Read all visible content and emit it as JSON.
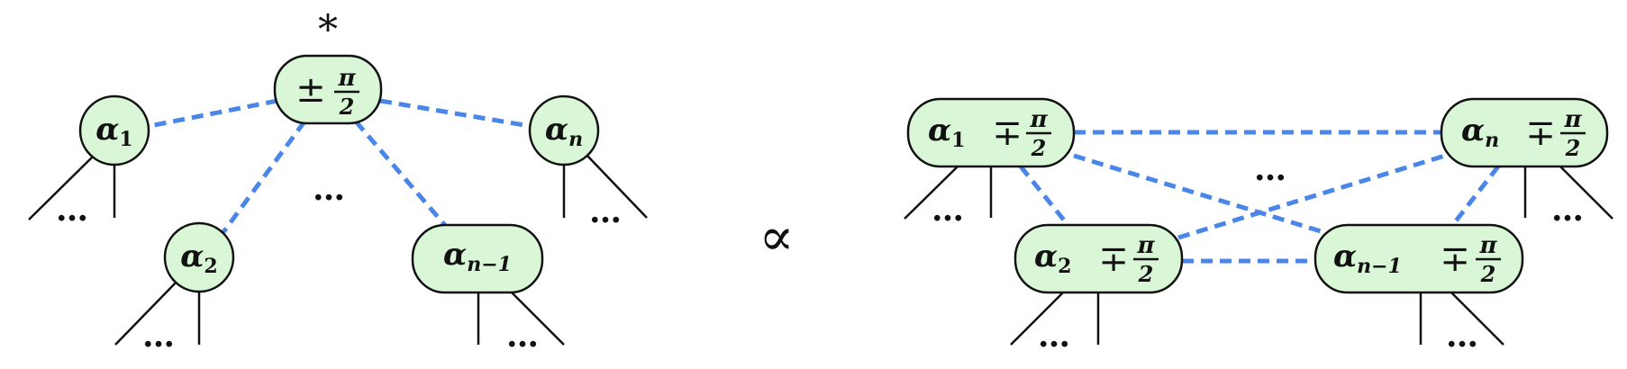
{
  "colors": {
    "node_fill": "#d9f7d6",
    "node_stroke": "#111111",
    "dashed_edge": "#4a86e8"
  },
  "left_tree": {
    "root": {
      "star": "*",
      "sign": "±",
      "frac_num": "π",
      "frac_den": "2"
    },
    "children": [
      {
        "base": "α",
        "sub": "1"
      },
      {
        "base": "α",
        "sub": "2"
      },
      {
        "base": "α",
        "sub": "n−1"
      },
      {
        "base": "α",
        "sub": "n"
      }
    ],
    "ellipsis": "…"
  },
  "relation": "∝",
  "right_graph": {
    "nodes": [
      {
        "base": "α",
        "sub": "1",
        "sign": "∓",
        "frac_num": "π",
        "frac_den": "2"
      },
      {
        "base": "α",
        "sub": "2",
        "sign": "∓",
        "frac_num": "π",
        "frac_den": "2"
      },
      {
        "base": "α",
        "sub": "n−1",
        "sign": "∓",
        "frac_num": "π",
        "frac_den": "2"
      },
      {
        "base": "α",
        "sub": "n",
        "sign": "∓",
        "frac_num": "π",
        "frac_den": "2"
      }
    ],
    "ellipsis": "…"
  }
}
